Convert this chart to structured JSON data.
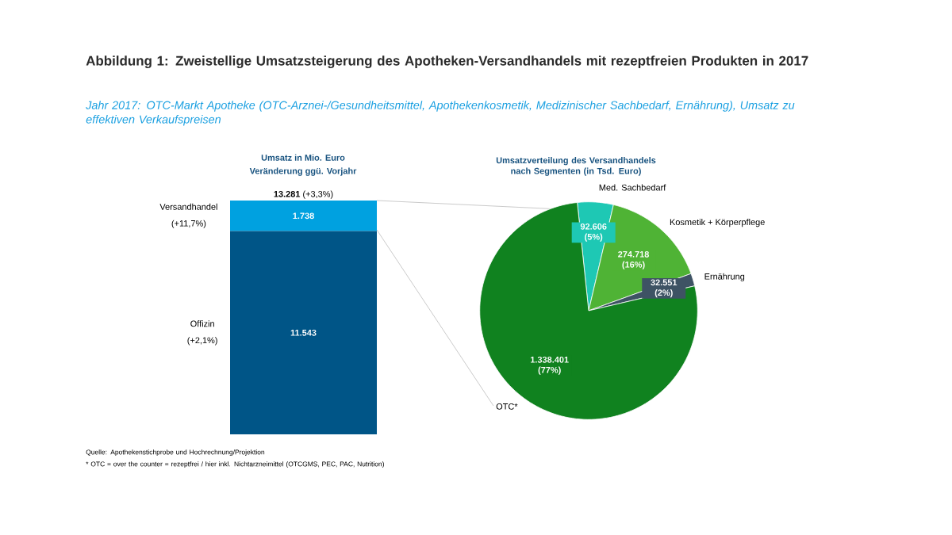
{
  "chart_data": [
    {
      "type": "bar",
      "stacked": true,
      "title": "Umsatz in Mio. Euro",
      "subtitle": "Veränderung ggü. Vorjahr",
      "categories": [
        null
      ],
      "series": [
        {
          "name": "Offizin",
          "color": "#005587",
          "values": [
            11543
          ],
          "value_labels": [
            "11.543"
          ]
        },
        {
          "name": "Versandhandel",
          "color": "#00a1e0",
          "values": [
            1738
          ],
          "value_labels": [
            "1.738"
          ]
        }
      ],
      "totals": [
        "**13.281** (+3,3%)"
      ],
      "annotations": [
        "Abbildung 1: Zweistellige Umsatzsteigerung des Apotheken-Versandhandels mit rezeptfreien Produkten in 2017",
        "Jahr 2017: OTC-Markt Apotheke (OTC-Arznei-/Gesundheitsmittel, Apothekenkosmetik, Medizinischer Sachbedarf, Ernährung), Umsatz zu effektiven Verkaufspreisen",
        "(+2,1%)",
        "(+11,7%)",
        "Quelle: Apothekenstichprobe und Hochrechnung/Projektion",
        "* OTC = over the counter = rezeptfrei / hier inkl. Nichtarzneimittel (OTCGMS, PEC, PAC, Nutrition)"
      ]
    },
    {
      "type": "pie",
      "title": "Umsatzverteilung des Versandhandels nach Segmenten (in Tsd. Euro)",
      "categories": [
        "Med. Sachbedarf",
        "Kosmetik + Körperpflege",
        "Ernährung",
        "OTC*"
      ],
      "values": [
        92606,
        274718,
        32551,
        1338401
      ],
      "value_labels": [
        "92.606 (5%)",
        "274.718 (16%)",
        "32.551 (2%)",
        "1.338.401 (77%)"
      ],
      "colors": [
        "#1ec8b4",
        "#4fb335",
        "#3e5364",
        "#10821f"
      ]
    }
  ]
}
